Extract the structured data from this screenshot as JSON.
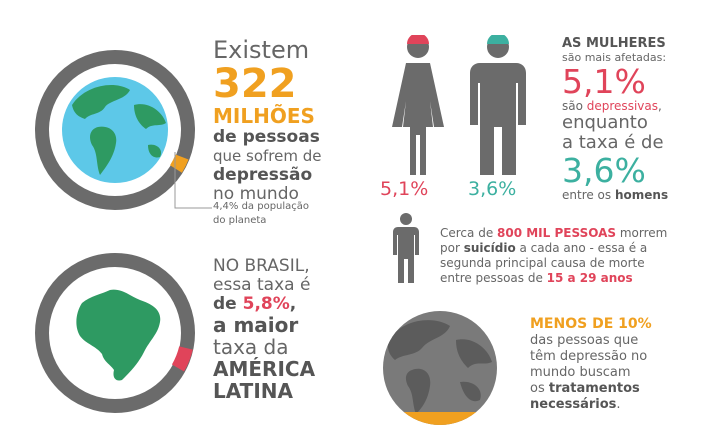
{
  "colors": {
    "orange": "#f0a020",
    "red": "#e0445a",
    "teal": "#3cb0a0",
    "gray": "#666666",
    "ring": "#6b6b6b",
    "ocean": "#5dc8e8",
    "land": "#2e9a62"
  },
  "block1": {
    "l1": "Existem",
    "l2": "322",
    "l3": "MILHÕES",
    "l4": "de pessoas",
    "l5": "que sofrem de",
    "l6": "depressão",
    "l7": "no mundo",
    "note1": "4,4% da população",
    "note2": "do planeta"
  },
  "block2": {
    "l1": "NO BRASIL,",
    "l2": "essa taxa é",
    "l3a": "de ",
    "l3b": "5,8%",
    "l3c": ",",
    "l4": "a maior",
    "l5": "taxa da",
    "l6": "AMÉRICA",
    "l7": "LATINA"
  },
  "block3": {
    "female_pct": "5,1%",
    "male_pct": "3,6%",
    "l1": "AS MULHERES",
    "l2": "são mais afetadas:",
    "l3": "5,1%",
    "l4a": "são ",
    "l4b": "depressivas",
    "l4c": ",",
    "l5": "enquanto",
    "l6": "a taxa é de",
    "l7": "3,6%",
    "l8a": "entre os ",
    "l8b": "homens"
  },
  "block4": {
    "l1a": "Cerca de ",
    "l1b": "800 MIL PESSOAS",
    "l1c": " morrem",
    "l2a": "por ",
    "l2b": "suicídio",
    "l2c": " a cada ano - essa é a",
    "l3": "segunda principal causa de morte",
    "l4a": "entre pessoas de ",
    "l4b": "15 a 29 anos"
  },
  "block5": {
    "l1": "MENOS DE 10%",
    "l2": "das pessoas que",
    "l3": "têm depressão no",
    "l4": "mundo buscam",
    "l5a": "os ",
    "l5b": "tratamentos",
    "l6a": "necessários",
    "l6b": "."
  }
}
